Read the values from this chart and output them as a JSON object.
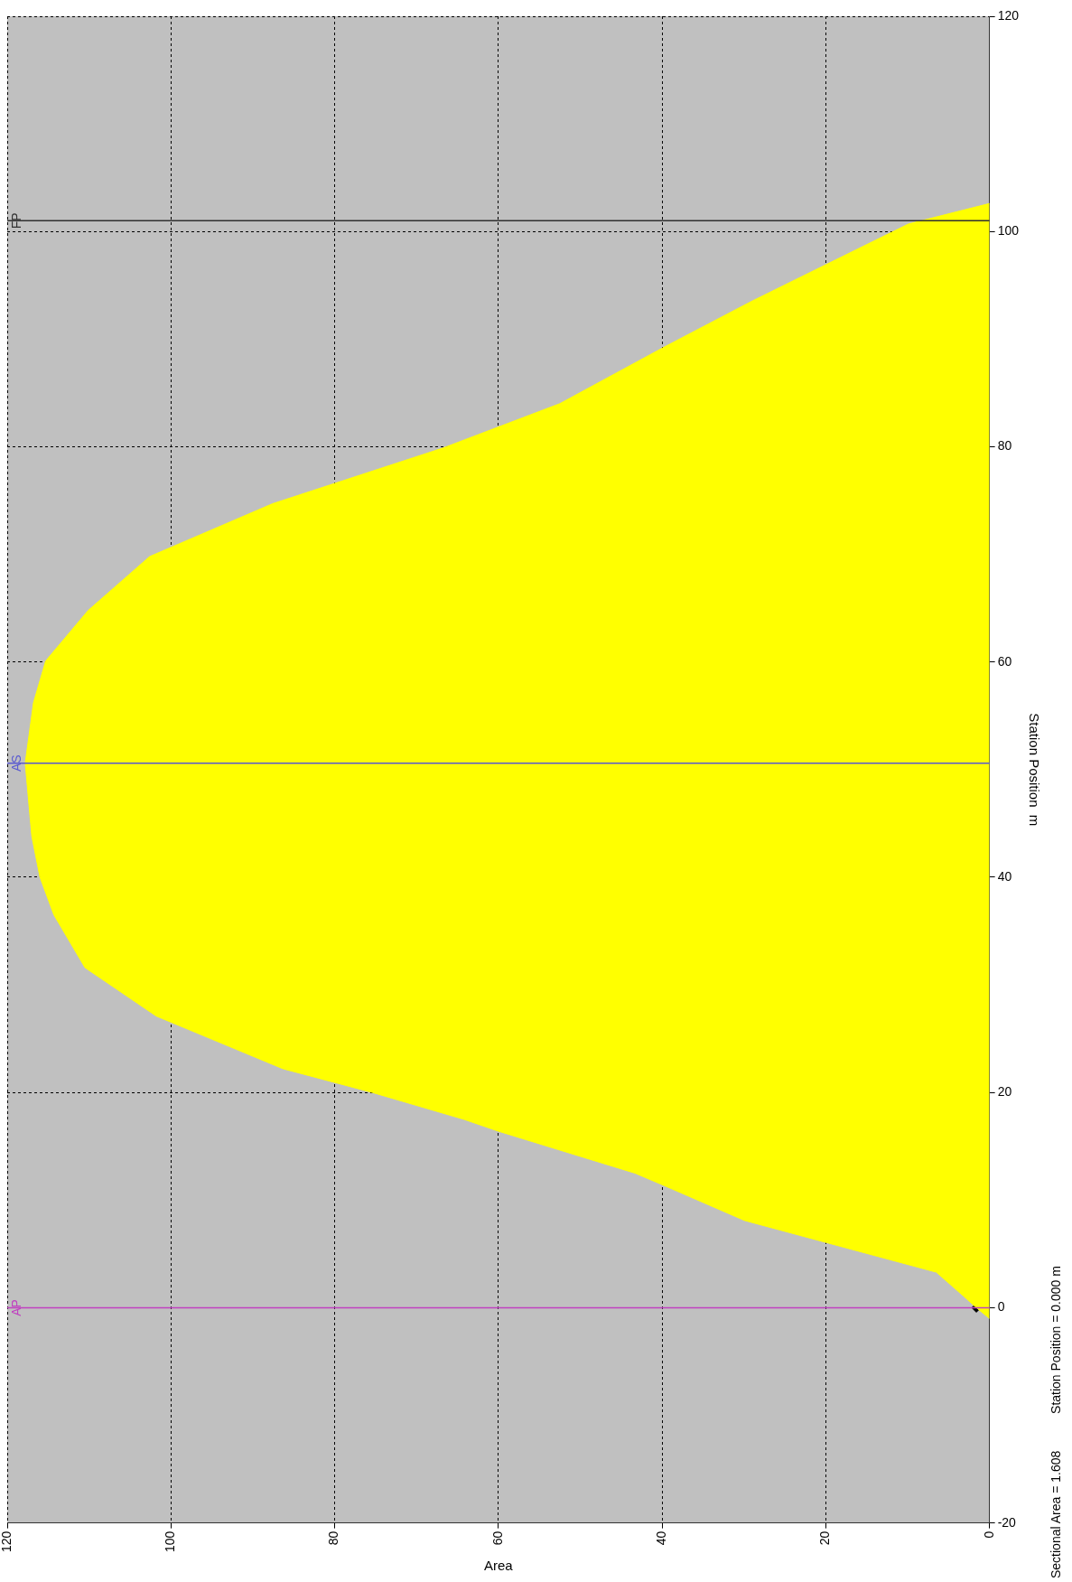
{
  "chart_data": {
    "type": "area",
    "xlabel": "Area",
    "ylabel": "Station Position  m",
    "xlim": [
      120,
      0
    ],
    "xticks": [
      0,
      20,
      40,
      60,
      80,
      100,
      120
    ],
    "ylim": [
      -20,
      120
    ],
    "yticks": [
      -20,
      0,
      20,
      40,
      60,
      80,
      100,
      120
    ],
    "grid": true,
    "legend": false,
    "series": [
      {
        "color": "#ffff00",
        "values": [
          -1,
          0,
          1.1,
          3.3,
          8.1,
          11.4,
          12.5,
          16.4,
          17.5,
          20,
          22.2,
          27.1,
          31.6,
          36.5,
          40,
          43.8,
          50.6,
          56.2,
          60.1,
          64.8,
          69.8,
          74.7,
          79.9,
          84,
          89.2,
          93.5,
          100.7,
          102.6
        ],
        "x": [
          0,
          1.6,
          3.2,
          6.5,
          29.9,
          39.9,
          43.3,
          60,
          64.2,
          75.4,
          86.3,
          101.8,
          110.5,
          114.3,
          116,
          117,
          117.8,
          116.8,
          115.3,
          110.1,
          102.6,
          87.6,
          66.7,
          52.5,
          39.9,
          29.1,
          9.9,
          0
        ]
      },
      {
        "type": "scatter",
        "color": "#000000",
        "marker": "diamond",
        "x": [
          1.608
        ],
        "values": [
          0
        ]
      }
    ],
    "ref_lines": [
      {
        "axis": "y",
        "value": 0,
        "label": "AP",
        "color": "#c040c0"
      },
      {
        "axis": "y",
        "value": 50.6,
        "label": "AS",
        "color": "#5a5ad0"
      },
      {
        "axis": "y",
        "value": 101,
        "label": "FP",
        "color": "#303030"
      }
    ],
    "annotations": [
      "Sectional Area = 1.608",
      "Station Position = 0.000 m"
    ]
  }
}
